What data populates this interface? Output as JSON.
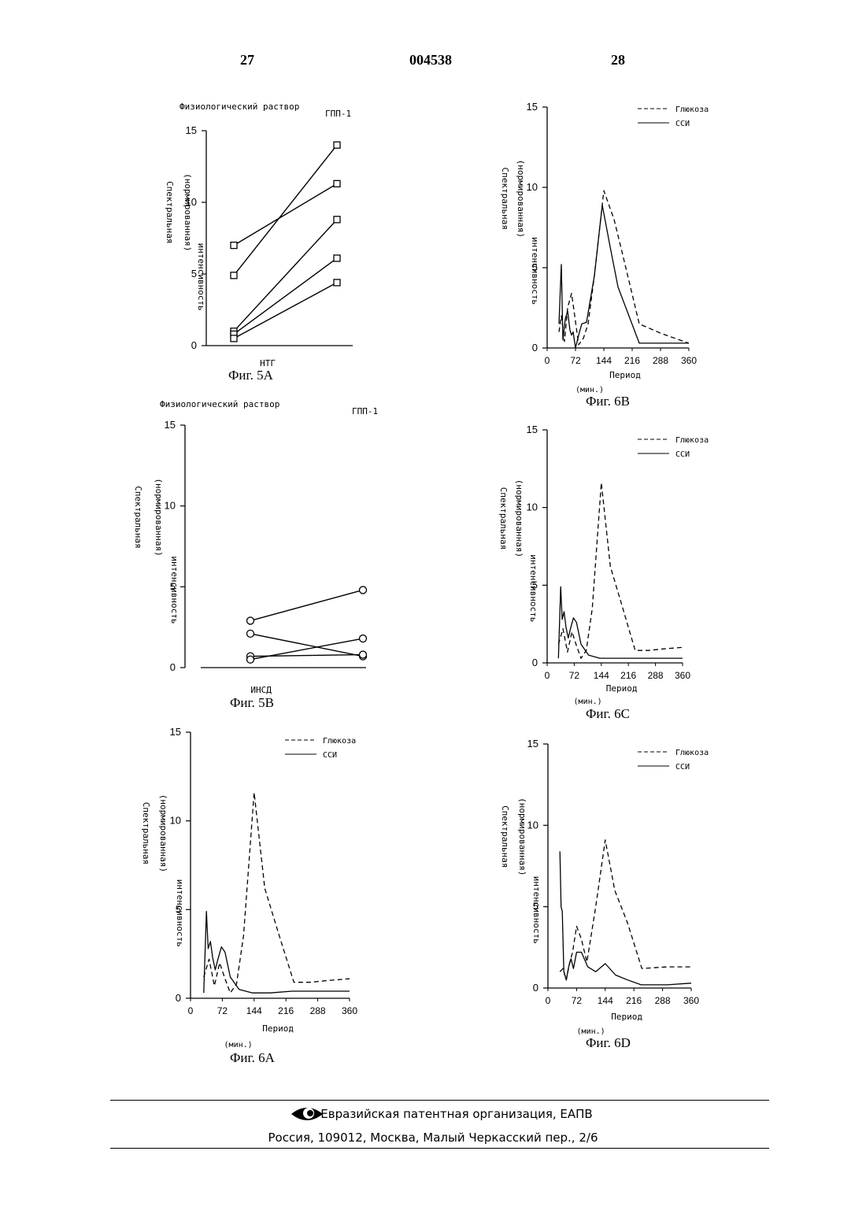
{
  "header": {
    "left_page": "27",
    "patent_number": "004538",
    "right_page": "28"
  },
  "footer": {
    "organization": "Евразийская патентная организация, ЕАПВ",
    "address": "Россия, 109012, Москва, Малый Черкасский пер., 2/6"
  },
  "chart_data": [
    {
      "id": "fig5a",
      "type": "line",
      "caption": "Фиг. 5А",
      "group_left": "Физиологический раствор",
      "group_right": "ГПП-1",
      "xlabel": "НТГ",
      "ylabel_line1": "Спектральная",
      "ylabel_line2": "(нормированная)",
      "ylabel_line3": "интенсивность",
      "ylim": [
        0,
        15
      ],
      "yticks": [
        "0",
        "5",
        "10",
        "15"
      ],
      "marker": "square",
      "series": [
        {
          "values": [
            7.0,
            11.3
          ]
        },
        {
          "values": [
            4.9,
            14.0
          ]
        },
        {
          "values": [
            1.0,
            8.8
          ]
        },
        {
          "values": [
            0.8,
            6.1
          ]
        },
        {
          "values": [
            0.5,
            4.4
          ]
        }
      ]
    },
    {
      "id": "fig5b",
      "type": "line",
      "caption": "Фиг. 5В",
      "group_left": "Физиологический раствор",
      "group_right": "ГПП-1",
      "xlabel": "ИНСД",
      "ylabel_line1": "Спектральная",
      "ylabel_line2": "(нормированная)",
      "ylabel_line3": "интенсивность",
      "ylim": [
        0,
        15
      ],
      "yticks": [
        "0",
        "5",
        "10",
        "15"
      ],
      "marker": "circle",
      "series": [
        {
          "values": [
            2.9,
            4.8
          ]
        },
        {
          "values": [
            2.1,
            0.7
          ]
        },
        {
          "values": [
            0.7,
            0.8
          ]
        },
        {
          "values": [
            0.5,
            1.8
          ]
        }
      ]
    },
    {
      "id": "fig6a",
      "type": "line",
      "caption": "Фиг. 6А",
      "xlabel": "Период",
      "xunit": "(мин.)",
      "ylabel_line1": "Спектральная",
      "ylabel_line2": "(нормированная)",
      "ylabel_line3": "интенсивность",
      "xlim": [
        0,
        360
      ],
      "ylim": [
        0,
        15
      ],
      "xticks": [
        "0",
        "72",
        "144",
        "216",
        "288",
        "360"
      ],
      "yticks": [
        "0",
        "5",
        "10",
        "15"
      ],
      "legend": "top-right",
      "series": [
        {
          "name": "Глюкоза",
          "style": "dashed",
          "x": [
            30,
            42,
            54,
            66,
            78,
            90,
            104,
            120,
            144,
            168,
            200,
            234,
            270,
            310,
            360
          ],
          "y": [
            1.2,
            2.2,
            0.7,
            2.0,
            1.1,
            0.3,
            0.8,
            3.5,
            11.6,
            6.2,
            3.6,
            0.9,
            0.9,
            1.0,
            1.1
          ]
        },
        {
          "name": "ССИ",
          "style": "solid",
          "x": [
            30,
            36,
            40,
            45,
            50,
            56,
            62,
            70,
            78,
            90,
            110,
            140,
            180,
            230,
            300,
            360
          ],
          "y": [
            0.3,
            4.9,
            2.8,
            3.2,
            2.3,
            1.6,
            2.2,
            2.9,
            2.6,
            1.2,
            0.5,
            0.3,
            0.3,
            0.4,
            0.4,
            0.4
          ]
        }
      ]
    },
    {
      "id": "fig6b",
      "type": "line",
      "caption": "Фиг. 6В",
      "xlabel": "Период",
      "xunit": "(мин.)",
      "ylabel_line1": "Спектральная",
      "ylabel_line2": "(нормированная)",
      "ylabel_line3": "интенсивность",
      "xlim": [
        0,
        360
      ],
      "ylim": [
        0,
        15
      ],
      "xticks": [
        "0",
        "72",
        "144",
        "216",
        "288",
        "360"
      ],
      "yticks": [
        "0",
        "5",
        "10",
        "15"
      ],
      "legend": "top-right",
      "series": [
        {
          "name": "Глюкоза",
          "style": "dashed",
          "x": [
            30,
            36,
            44,
            52,
            62,
            70,
            80,
            92,
            104,
            120,
            144,
            170,
            190,
            234,
            290,
            360
          ],
          "y": [
            1.0,
            2.0,
            0.4,
            2.5,
            3.4,
            2.0,
            0.2,
            0.6,
            1.5,
            4.5,
            9.8,
            8.0,
            6.0,
            1.5,
            0.9,
            0.3
          ]
        },
        {
          "name": "ССИ",
          "style": "solid",
          "x": [
            30,
            36,
            40,
            46,
            52,
            58,
            62,
            66,
            72,
            80,
            88,
            100,
            120,
            140,
            160,
            180,
            234,
            360
          ],
          "y": [
            1.5,
            5.2,
            0.5,
            1.8,
            2.3,
            1.1,
            0.8,
            1.0,
            0.0,
            0.8,
            1.5,
            1.6,
            4.5,
            8.9,
            6.3,
            3.8,
            0.3,
            0.3
          ]
        }
      ]
    },
    {
      "id": "fig6c",
      "type": "line",
      "caption": "Фиг. 6С",
      "xlabel": "Период",
      "xunit": "(мин.)",
      "ylabel_line1": "Спектральная",
      "ylabel_line2": "(нормированная)",
      "ylabel_line3": "интенсивность",
      "xlim": [
        0,
        360
      ],
      "ylim": [
        0,
        15
      ],
      "xticks": [
        "0",
        "72",
        "144",
        "216",
        "288",
        "360"
      ],
      "yticks": [
        "0",
        "5",
        "10",
        "15"
      ],
      "legend": "top-right",
      "series": [
        {
          "name": "Глюкоза",
          "style": "dashed",
          "x": [
            30,
            42,
            54,
            66,
            78,
            90,
            104,
            120,
            144,
            168,
            200,
            234,
            270,
            310,
            360
          ],
          "y": [
            1.2,
            2.2,
            0.7,
            2.0,
            1.1,
            0.3,
            0.8,
            3.5,
            11.6,
            6.2,
            3.6,
            0.8,
            0.8,
            0.9,
            1.0
          ]
        },
        {
          "name": "ССИ",
          "style": "solid",
          "x": [
            30,
            36,
            40,
            45,
            50,
            56,
            62,
            70,
            78,
            90,
            110,
            140,
            180,
            230,
            300,
            360
          ],
          "y": [
            0.3,
            4.9,
            2.8,
            3.3,
            2.3,
            1.6,
            2.2,
            2.9,
            2.6,
            1.2,
            0.5,
            0.3,
            0.3,
            0.3,
            0.3,
            0.3
          ]
        }
      ]
    },
    {
      "id": "fig6d",
      "type": "line",
      "caption": "Фиг. 6D",
      "xlabel": "Период",
      "xunit": "(мин.)",
      "ylabel_line1": "Спектральная",
      "ylabel_line2": "(нормированная)",
      "ylabel_line3": "интенсивность",
      "xlim": [
        0,
        360
      ],
      "ylim": [
        0,
        15
      ],
      "xticks": [
        "0",
        "72",
        "144",
        "216",
        "288",
        "360"
      ],
      "yticks": [
        "0",
        "5",
        "10",
        "15"
      ],
      "legend": "top-right",
      "series": [
        {
          "name": "Глюкоза",
          "style": "dashed",
          "x": [
            30,
            38,
            46,
            54,
            62,
            72,
            84,
            98,
            120,
            144,
            168,
            200,
            236,
            300,
            360
          ],
          "y": [
            1.0,
            1.2,
            0.5,
            1.5,
            2.2,
            3.8,
            3.0,
            1.6,
            5.0,
            9.1,
            6.0,
            4.0,
            1.2,
            1.3,
            1.3
          ]
        },
        {
          "name": "ССИ",
          "style": "solid",
          "x": [
            30,
            33,
            36,
            40,
            46,
            52,
            58,
            64,
            72,
            84,
            100,
            120,
            144,
            170,
            200,
            234,
            300,
            360
          ],
          "y": [
            8.4,
            5.0,
            4.7,
            1.0,
            0.5,
            1.3,
            1.8,
            1.2,
            2.2,
            2.2,
            1.3,
            1.0,
            1.5,
            0.8,
            0.5,
            0.2,
            0.2,
            0.3
          ]
        }
      ]
    }
  ]
}
